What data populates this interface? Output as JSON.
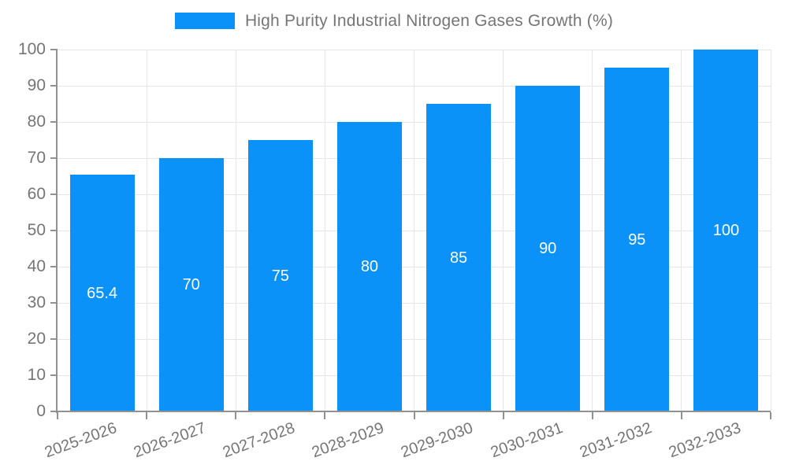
{
  "legend": {
    "label": "High Purity Industrial Nitrogen Gases Growth (%)"
  },
  "chart_data": {
    "type": "bar",
    "title": "High Purity Industrial Nitrogen Gases Growth (%)",
    "categories": [
      "2025-2026",
      "2026-2027",
      "2027-2028",
      "2028-2029",
      "2029-2030",
      "2030-2031",
      "2031-2032",
      "2032-2033"
    ],
    "values": [
      65.4,
      70,
      75,
      80,
      85,
      90,
      95,
      100
    ],
    "value_labels": [
      "65.4",
      "70",
      "75",
      "80",
      "85",
      "90",
      "95",
      "100"
    ],
    "xlabel": "",
    "ylabel": "",
    "ylim": [
      0,
      100
    ],
    "y_ticks": [
      0,
      10,
      20,
      30,
      40,
      50,
      60,
      70,
      80,
      90,
      100
    ],
    "grid": true,
    "legend_position": "top-center",
    "x_tick_label_rotation_deg": -20,
    "colors": {
      "bar": "#0a92f8",
      "grid": "#e6e6e6",
      "axis": "#919191",
      "tick_label": "#757575",
      "value_label": "#ffffff",
      "legend_text": "#757575",
      "background": "#ffffff"
    }
  }
}
